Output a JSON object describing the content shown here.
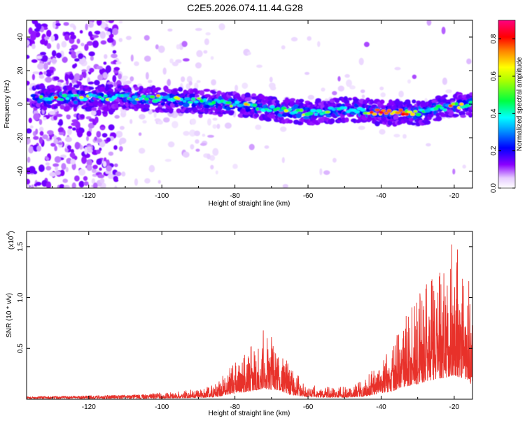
{
  "title": "C2E5.2026.074.11.44.G28",
  "chart_data": [
    {
      "type": "heatmap",
      "xlabel": "Height of straight line (km)",
      "ylabel": "Frequency (Hz)",
      "xlim": [
        -137,
        -15
      ],
      "ylim": [
        -50,
        50
      ],
      "xticks": [
        -120,
        -100,
        -80,
        -60,
        -40,
        -20
      ],
      "yticks": [
        -40,
        -20,
        0,
        20,
        40
      ],
      "ridge": {
        "description": "dominant frequency ridge (Hz) vs height",
        "x": [
          -132,
          -120,
          -110,
          -100,
          -90,
          -80,
          -70,
          -60,
          -50,
          -40,
          -30,
          -20,
          -15
        ],
        "y": [
          4,
          4,
          4,
          3,
          2,
          0,
          -3,
          -5,
          -3,
          -5,
          -5,
          -1,
          0
        ]
      },
      "colorbar": {
        "label": "Normalized spectral amplitude",
        "range": [
          0,
          0.9
        ],
        "ticks": [
          "0.0",
          "0.2",
          "0.4",
          "0.6",
          "0.8"
        ],
        "colormap": [
          "#ffffff",
          "#e0c8ff",
          "#8000ff",
          "#0000ff",
          "#00ffff",
          "#00ff00",
          "#ffff00",
          "#ff8000",
          "#ff0000",
          "#ff00ff"
        ]
      }
    },
    {
      "type": "line",
      "xlabel": "Height of straight line (km)",
      "ylabel": "SNR (10 * v/v)",
      "multiplier_label": "(x10",
      "multiplier_exp": "4",
      "xlim": [
        -137,
        -15
      ],
      "ylim": [
        0,
        1.65
      ],
      "xticks": [
        -120,
        -100,
        -80,
        -60,
        -40,
        -20
      ],
      "yticks": [
        0.5,
        1.0,
        1.5
      ],
      "ytick_labels": [
        "0.5",
        "1.0",
        "1.5"
      ],
      "color": "#e8312a",
      "envelope": {
        "description": "approximate upper envelope of the noisy SNR trace (x10^4)",
        "x": [
          -137,
          -120,
          -105,
          -100,
          -90,
          -85,
          -82,
          -78,
          -75,
          -72,
          -70,
          -68,
          -65,
          -60,
          -55,
          -50,
          -45,
          -42,
          -40,
          -37,
          -35,
          -32,
          -30,
          -27,
          -25,
          -22,
          -20,
          -18,
          -16,
          -15
        ],
        "y": [
          0.02,
          0.03,
          0.04,
          0.06,
          0.1,
          0.15,
          0.3,
          0.45,
          0.55,
          0.72,
          0.62,
          0.6,
          0.3,
          0.15,
          0.12,
          0.12,
          0.18,
          0.3,
          0.42,
          0.5,
          0.75,
          0.9,
          1.0,
          1.2,
          1.3,
          1.45,
          1.6,
          1.35,
          1.2,
          0.85
        ]
      }
    }
  ]
}
